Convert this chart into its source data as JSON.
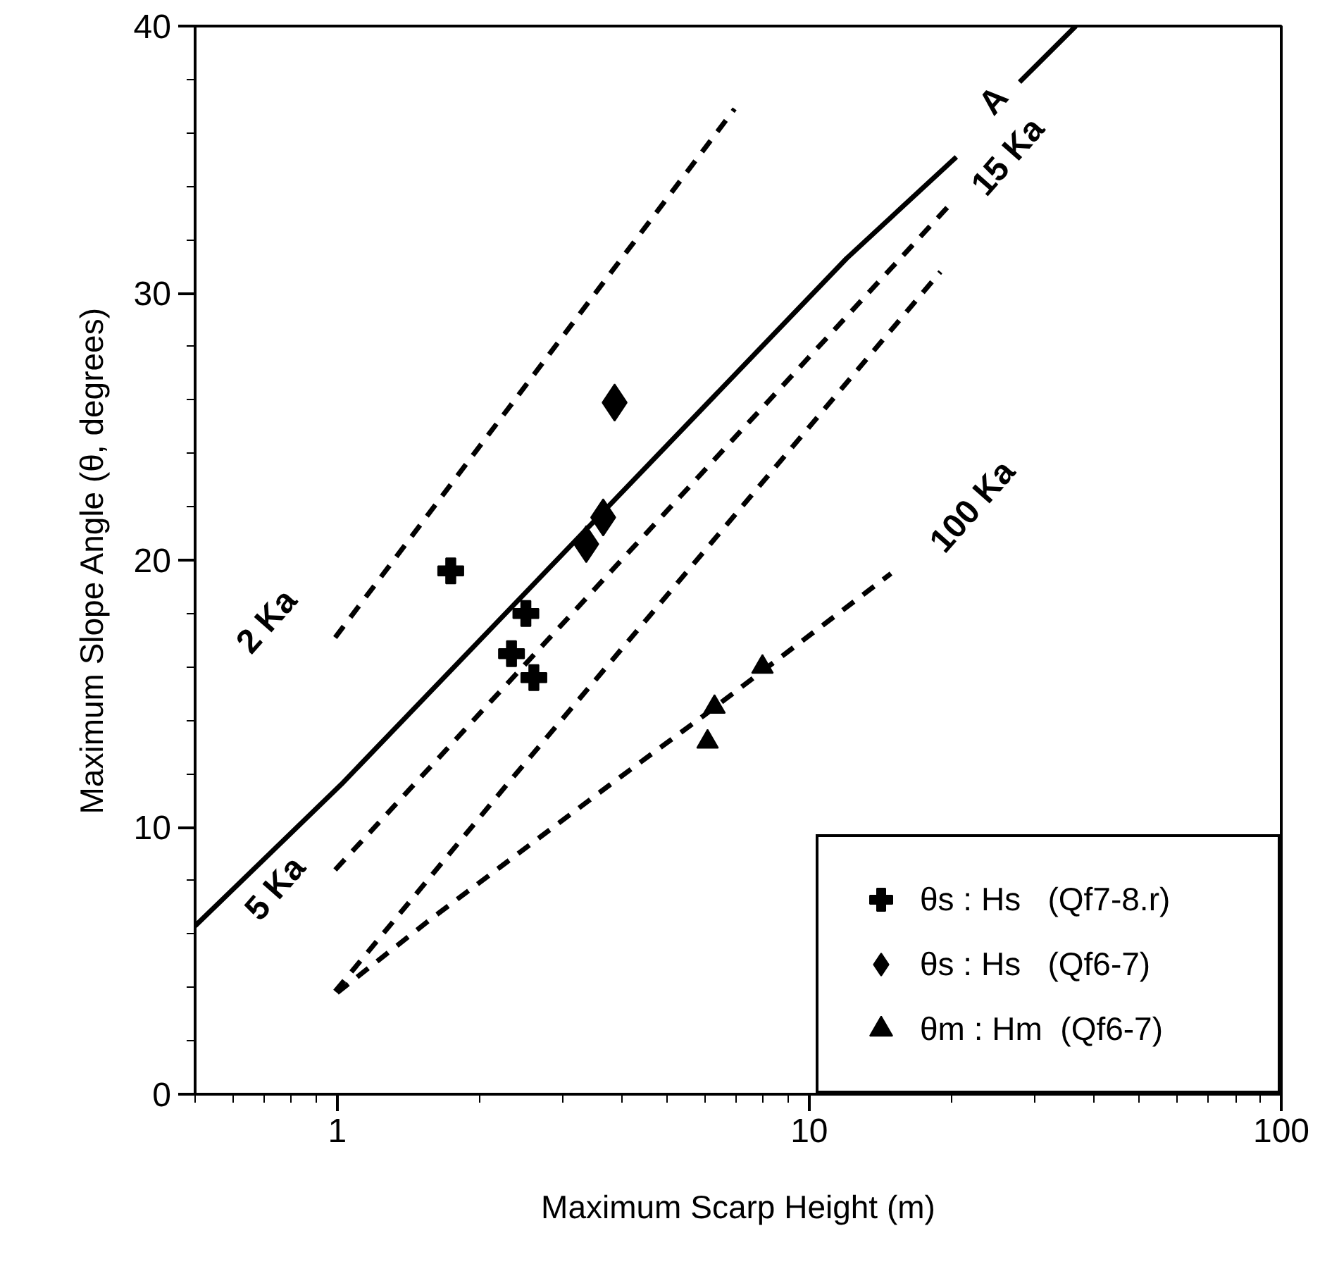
{
  "chart_data": {
    "type": "line",
    "xlabel": "Maximum Scarp Height (m)",
    "ylabel": "Maximum Slope Angle (θ, degrees)",
    "log": "x",
    "xlim": [
      0.5,
      100
    ],
    "xticks": [
      1,
      10,
      100
    ],
    "ylim": [
      0,
      40
    ],
    "yticks": [
      0,
      10,
      20,
      30,
      40
    ],
    "grid": false,
    "legend": "bottom right",
    "series": [
      {
        "line_style": "dashed",
        "marker": "none",
        "color": "#000000",
        "x": [
          0.99,
          6.95
        ],
        "values": [
          17.1,
          36.9
        ]
      },
      {
        "line_style": "solid",
        "marker": "none",
        "color": "#000000",
        "x": [
          0.5,
          1.02,
          12,
          20.5,
          24,
          27.9,
          36.7
        ],
        "values": [
          6.3,
          11.6,
          31.3,
          35.1,
          null,
          37.9,
          40
        ]
      },
      {
        "line_style": "dashed",
        "marker": "none",
        "color": "#000000",
        "x": [
          0.99,
          19.6
        ],
        "values": [
          8.4,
          33.2
        ]
      },
      {
        "line_style": "dashed",
        "marker": "none",
        "color": "#000000",
        "x": [
          0.99,
          2.29,
          18.97
        ],
        "values": [
          3.85,
          11.6,
          30.8
        ]
      },
      {
        "line_style": "dashed",
        "marker": "none",
        "color": "#000000",
        "x": [
          1.0,
          1.59,
          3.79,
          6.0,
          14.9
        ],
        "values": [
          3.8,
          6.6,
          11.6,
          14.2,
          19.5
        ]
      },
      {
        "type": "scatter",
        "marker": "cross",
        "name": "θs : Hs   (Qf7-8.r)",
        "color": "#000000",
        "x": [
          1.74,
          2.51,
          2.34,
          2.61
        ],
        "values": [
          19.6,
          18.0,
          16.5,
          15.6
        ]
      },
      {
        "type": "scatter",
        "marker": "diamond",
        "name": "θs : Hs   (Qf6-7)",
        "color": "#000000",
        "x": [
          3.87,
          3.66,
          3.37
        ],
        "values": [
          25.9,
          21.6,
          20.6
        ]
      },
      {
        "type": "scatter",
        "marker": "triangle",
        "name": "θm : Hm  (Qf6-7)",
        "color": "#000000",
        "x": [
          6.09,
          6.3,
          7.96
        ],
        "values": [
          13.2,
          14.5,
          16.0
        ]
      }
    ],
    "annotations": [
      "2 Ka",
      "5 Ka",
      "A",
      "15 Ka",
      "100 Ka"
    ]
  }
}
